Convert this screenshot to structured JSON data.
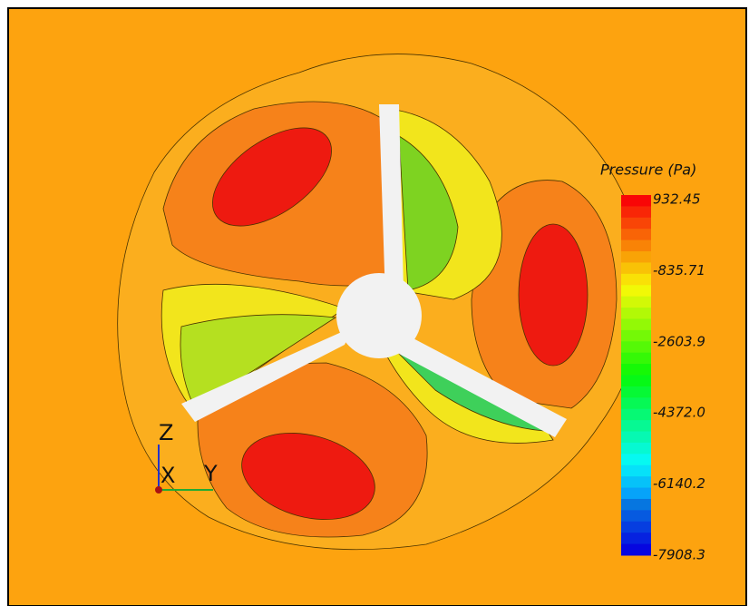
{
  "legend": {
    "title": "Pressure (Pa)",
    "labels": [
      "932.45",
      "-835.71",
      "-2603.9",
      "-4372.0",
      "-6140.2",
      "-7908.3"
    ]
  },
  "axes": {
    "z": "Z",
    "x": "X",
    "y": "Y"
  }
}
